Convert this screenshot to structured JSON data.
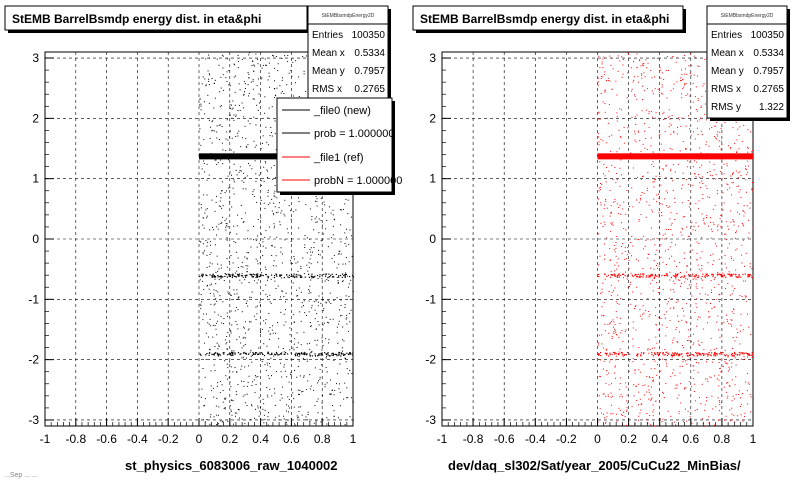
{
  "chart_data": [
    {
      "type": "scatter",
      "title": "StEMB BarrelBsmdp energy dist. in eta&phi",
      "xlabel": "st_physics_6083006_raw_1040002",
      "ylabel": "",
      "xlim": [
        -1,
        1
      ],
      "ylim": [
        -3.1,
        3.1
      ],
      "x_ticks": [
        "-1",
        "-0.8",
        "-0.6",
        "-0.4",
        "-0.2",
        "0",
        "0.2",
        "0.4",
        "0.6",
        "0.8",
        "1"
      ],
      "y_ticks": [
        "-3",
        "-2",
        "-1",
        "0",
        "1",
        "2",
        "3"
      ],
      "grid": true,
      "point_color": "#000000",
      "point_region": {
        "x": [
          0,
          1
        ],
        "y": [
          -3.1,
          3.1
        ]
      },
      "dense_band_y": 1.37,
      "secondary_rows_y": [
        -0.6,
        -1.9
      ],
      "stats": {
        "name": "StEMBbsmdpEnergy2D",
        "rows": [
          {
            "label": "Entries",
            "value": "100350"
          },
          {
            "label": "Mean x",
            "value": "0.5334"
          },
          {
            "label": "Mean y",
            "value": "0.7957"
          },
          {
            "label": "RMS x",
            "value": "0.2765"
          }
        ]
      },
      "legend": {
        "entries": [
          {
            "label": "_file0 (new)",
            "color": "#000000"
          },
          {
            "label": "prob = 1.000000",
            "color": "#000000"
          },
          {
            "label": "_file1 (ref)",
            "color": "#ff0000"
          },
          {
            "label": "probN = 1.000000",
            "color": "#ff0000"
          }
        ]
      }
    },
    {
      "type": "scatter",
      "title": "StEMB BarrelBsmdp energy dist. in eta&phi",
      "xlabel": "dev/daq_sl302/Sat/year_2005/CuCu22_MinBias/",
      "ylabel": "",
      "xlim": [
        -1,
        1
      ],
      "ylim": [
        -3.1,
        3.1
      ],
      "x_ticks": [
        "-1",
        "-0.8",
        "-0.6",
        "-0.4",
        "-0.2",
        "0",
        "0.2",
        "0.4",
        "0.6",
        "0.8",
        "1"
      ],
      "y_ticks": [
        "-3",
        "-2",
        "-1",
        "0",
        "1",
        "2",
        "3"
      ],
      "grid": true,
      "point_color": "#ff0000",
      "point_region": {
        "x": [
          0,
          1
        ],
        "y": [
          -3.1,
          3.1
        ]
      },
      "dense_band_y": 1.37,
      "secondary_rows_y": [
        -0.6,
        -1.9
      ],
      "stats": {
        "name": "StEMBbsmdpEnergy2D",
        "rows": [
          {
            "label": "Entries",
            "value": "100350"
          },
          {
            "label": "Mean x",
            "value": "0.5334"
          },
          {
            "label": "Mean y",
            "value": "0.7957"
          },
          {
            "label": "RMS x",
            "value": "0.2765"
          },
          {
            "label": "RMS y",
            "value": "1.322"
          }
        ]
      }
    }
  ],
  "footer_text": "...Sep ... ..."
}
